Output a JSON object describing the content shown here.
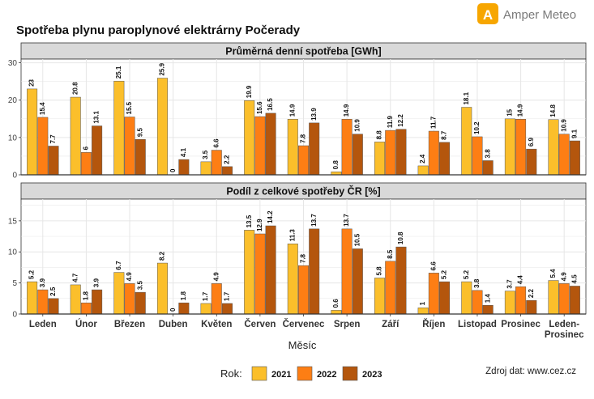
{
  "title": "Spotřeba plynu paroplynové elektrárny Počerady",
  "brand": {
    "name": "Amper Meteo",
    "logo_letter": "A",
    "color": "#f7a600"
  },
  "source": "Zdroj dat: www.cez.cz",
  "colors": {
    "2021": "#fbbf2b",
    "2022": "#fd7e14",
    "2023": "#b4560d"
  },
  "chart_data": {
    "type": "bar",
    "xlabel": "Měsíc",
    "categories": [
      "Leden",
      "Únor",
      "Březen",
      "Duben",
      "Květen",
      "Červen",
      "Červenec",
      "Srpen",
      "Září",
      "Říjen",
      "Listopad",
      "Prosinec",
      "Leden-\nProsinec"
    ],
    "legend": {
      "title": "Rok:",
      "entries": [
        "2021",
        "2022",
        "2023"
      ],
      "placement": "bottom"
    },
    "panels": [
      {
        "title": "Průměrná denní spotřeba [GWh]",
        "ylim": [
          0,
          31
        ],
        "yticks": [
          0,
          10,
          20,
          30
        ],
        "series": [
          {
            "name": "2021",
            "values": [
              23,
              20.8,
              25.1,
              25.9,
              3.5,
              19.9,
              14.9,
              0.8,
              8.8,
              2.4,
              18.1,
              15,
              14.8
            ]
          },
          {
            "name": "2022",
            "values": [
              15.4,
              6,
              15.5,
              0,
              6.6,
              15.6,
              7.8,
              14.9,
              11.9,
              11.7,
              10.2,
              14.9,
              10.9
            ]
          },
          {
            "name": "2023",
            "values": [
              7.7,
              13.1,
              9.5,
              4.1,
              2.2,
              16.5,
              13.9,
              10.9,
              12.2,
              8.7,
              3.8,
              6.9,
              9.1
            ]
          }
        ]
      },
      {
        "title": "Podíl z celkové spotřeby ČR [%]",
        "ylim": [
          0,
          18.5
        ],
        "yticks": [
          0,
          5,
          10,
          15
        ],
        "series": [
          {
            "name": "2021",
            "values": [
              5.2,
              4.7,
              6.7,
              8.2,
              1.7,
              13.5,
              11.3,
              0.6,
              5.8,
              1,
              5.2,
              3.7,
              5.4
            ]
          },
          {
            "name": "2022",
            "values": [
              3.9,
              1.8,
              4.9,
              0,
              4.9,
              12.9,
              7.8,
              13.7,
              8.5,
              6.6,
              3.8,
              4.4,
              4.9
            ]
          },
          {
            "name": "2023",
            "values": [
              2.5,
              3.9,
              3.5,
              1.8,
              1.7,
              14.2,
              13.7,
              10.5,
              10.8,
              5.2,
              1.4,
              2.2,
              4.5
            ]
          }
        ]
      }
    ]
  }
}
